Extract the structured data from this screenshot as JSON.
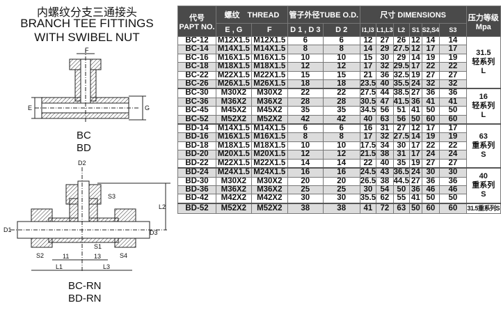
{
  "left": {
    "title_cn": "内螺纹分支三通接头",
    "title_en_1": "BRANCH TEE FITTINGS",
    "title_en_2": "WITH SWIBEL NUT",
    "labels_top": [
      "BC",
      "BD"
    ],
    "labels_bottom": [
      "BC-RN",
      "BD-RN"
    ],
    "diagram1_dims": {
      "f": "F",
      "e": "E",
      "g": "G"
    },
    "diagram2_dims": {
      "d2": "D2",
      "s3": "S3",
      "l2": "L2",
      "d1": "D1",
      "d3": "D3",
      "s2": "S2",
      "s1": "S1",
      "s4": "S4",
      "l1_short": "11",
      "l3_short": "13",
      "l1": "L1",
      "l3": "L3"
    }
  },
  "table": {
    "headers": {
      "part_no_cn": "代号",
      "part_no": "PAPT NO.",
      "thread": "螺纹　THREAD",
      "tube_od": "管子外径TUBE O.D.",
      "dimensions": "尺寸 DIMENSIONS",
      "pressure_cn": "压力等级",
      "pressure_unit": "Mpa",
      "sub": [
        "E , G",
        "F",
        "D 1 , D 3",
        "D 2",
        "l1,l3",
        "L1,L3",
        "L2",
        "S1",
        "S2,S4",
        "S3"
      ]
    },
    "rows": [
      [
        "BC-12",
        "M12X1.5",
        "M12X1.5",
        "6",
        "6",
        "12",
        "27",
        "26",
        "12",
        "14",
        "14"
      ],
      [
        "BC-14",
        "M14X1.5",
        "M14X1.5",
        "8",
        "8",
        "14",
        "29",
        "27.5",
        "12",
        "17",
        "17"
      ],
      [
        "BC-16",
        "M16X1.5",
        "M16X1.5",
        "10",
        "10",
        "15",
        "30",
        "29",
        "14",
        "19",
        "19"
      ],
      [
        "BC-18",
        "M18X1.5",
        "M18X1.5",
        "12",
        "12",
        "17",
        "32",
        "29.5",
        "17",
        "22",
        "22"
      ],
      [
        "BC-22",
        "M22X1.5",
        "M22X1.5",
        "15",
        "15",
        "21",
        "36",
        "32.5",
        "19",
        "27",
        "27"
      ],
      [
        "BC-26",
        "M26X1.5",
        "M26X1.5",
        "18",
        "18",
        "23.5",
        "40",
        "35.5",
        "24",
        "32",
        "32"
      ],
      [
        "BC-30",
        "M30X2",
        "M30X2",
        "22",
        "22",
        "27.5",
        "44",
        "38.5",
        "27",
        "36",
        "36"
      ],
      [
        "BC-36",
        "M36X2",
        "M36X2",
        "28",
        "28",
        "30.5",
        "47",
        "41.5",
        "36",
        "41",
        "41"
      ],
      [
        "BC-45",
        "M45X2",
        "M45X2",
        "35",
        "35",
        "34.5",
        "56",
        "51",
        "41",
        "50",
        "50"
      ],
      [
        "BC-52",
        "M52X2",
        "M52X2",
        "42",
        "42",
        "40",
        "63",
        "56",
        "50",
        "60",
        "60"
      ],
      [
        "BD-14",
        "M14X1.5",
        "M14X1.5",
        "6",
        "6",
        "16",
        "31",
        "27",
        "12",
        "17",
        "17"
      ],
      [
        "BD-16",
        "M16X1.5",
        "M16X1.5",
        "8",
        "8",
        "17",
        "32",
        "27.5",
        "14",
        "19",
        "19"
      ],
      [
        "BD-18",
        "M18X1.5",
        "M18X1.5",
        "10",
        "10",
        "17.5",
        "34",
        "30",
        "17",
        "22",
        "22"
      ],
      [
        "BD-20",
        "M20X1.5",
        "M20X1.5",
        "12",
        "12",
        "21.5",
        "38",
        "31",
        "17",
        "24",
        "24"
      ],
      [
        "BD-22",
        "M22X1.5",
        "M22X1.5",
        "14",
        "14",
        "22",
        "40",
        "35",
        "19",
        "27",
        "27"
      ],
      [
        "BD-24",
        "M24X1.5",
        "M24X1.5",
        "16",
        "16",
        "24.5",
        "43",
        "36.5",
        "24",
        "30",
        "30"
      ],
      [
        "BD-30",
        "M30X2",
        "M30X2",
        "20",
        "20",
        "26.5",
        "38",
        "44.5",
        "27",
        "36",
        "36"
      ],
      [
        "BD-36",
        "M36X2",
        "M36X2",
        "25",
        "25",
        "30",
        "54",
        "50",
        "36",
        "46",
        "46"
      ],
      [
        "BD-42",
        "M42X2",
        "M42X2",
        "30",
        "30",
        "35.5",
        "62",
        "55",
        "41",
        "50",
        "50"
      ],
      [
        "BD-52",
        "M52X2",
        "M52X2",
        "38",
        "38",
        "41",
        "72",
        "63",
        "50",
        "60",
        "60"
      ]
    ],
    "pressure_groups": [
      {
        "start": 0,
        "span": 6,
        "lines": [
          "31.5",
          "轻系列",
          "L"
        ]
      },
      {
        "start": 6,
        "span": 4,
        "lines": [
          "16",
          "轻系列",
          "L"
        ]
      },
      {
        "start": 10,
        "span": 5,
        "lines": [
          "63",
          "重系列",
          "S"
        ]
      },
      {
        "start": 15,
        "span": 4,
        "lines": [
          "40",
          "重系列",
          "S"
        ]
      },
      {
        "start": 19,
        "span": 1,
        "lines": [
          "31.5重系列S"
        ]
      }
    ],
    "header_bg": "#4a4a4a",
    "alt_row_bg": "#dcdcdc"
  }
}
